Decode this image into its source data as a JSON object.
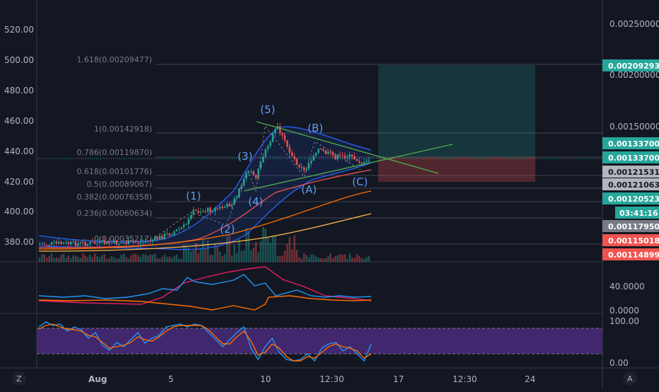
{
  "left_axis": {
    "labels": [
      "520.00",
      "500.00",
      "480.00",
      "460.00",
      "440.00",
      "420.00",
      "400.00",
      "380.00"
    ]
  },
  "right_axis": {
    "plain_labels": [
      "0.00250000",
      "0.00200000",
      "0.00150000"
    ],
    "badges": [
      {
        "text": "0.00209293",
        "color": "#26a69a"
      },
      {
        "text": "0.00133700",
        "color": "#26a69a"
      },
      {
        "text": "0.00133700",
        "color": "#26a69a"
      },
      {
        "text": "0.00121531",
        "color": "#b2b5be"
      },
      {
        "text": "0.00121063",
        "color": "#b2b5be"
      },
      {
        "text": "0.00120523",
        "color": "#26a69a"
      },
      {
        "text": "03:41:16",
        "color": "#26a69a"
      },
      {
        "text": "0.00117950",
        "color": "#787b86"
      },
      {
        "text": "0.00115018",
        "color": "#ef5350"
      },
      {
        "text": "0.00114899",
        "color": "#ef5350"
      }
    ]
  },
  "fib_levels": [
    {
      "label": "1.618(0.00209477)"
    },
    {
      "label": "1(0.00142918)"
    },
    {
      "label": "0.786(0.00119870)"
    },
    {
      "label": "0.618(0.00101776)"
    },
    {
      "label": "0.5(0.00089067)"
    },
    {
      "label": "0.382(0.00076358)"
    },
    {
      "label": "0.236(0.00060634)"
    },
    {
      "label": "0(0.00035217)"
    }
  ],
  "wave_labels": [
    "(1)",
    "(2)",
    "(3)",
    "(4)",
    "(5)",
    "(A)",
    "(B)",
    "(C)"
  ],
  "indicator1": {
    "labels": [
      "40.0000",
      "0.0000"
    ]
  },
  "indicator2": {
    "labels": [
      "100.00",
      "0.00"
    ]
  },
  "time_axis": {
    "labels": [
      "Aug",
      "5",
      "10",
      "12:30",
      "17",
      "12:30",
      "24"
    ]
  },
  "corner_buttons": {
    "left": "Z",
    "right": "A"
  },
  "colors": {
    "background": "#131722",
    "up": "#26a69a",
    "down": "#ef5350",
    "bollinger": "#2962ff",
    "wave": "#5b9cf6",
    "trend": "#4caf50",
    "ma_orange": "#ff6d00",
    "ma_yellow": "#ffb74d",
    "rsi_band": "#4a2a7a"
  }
}
